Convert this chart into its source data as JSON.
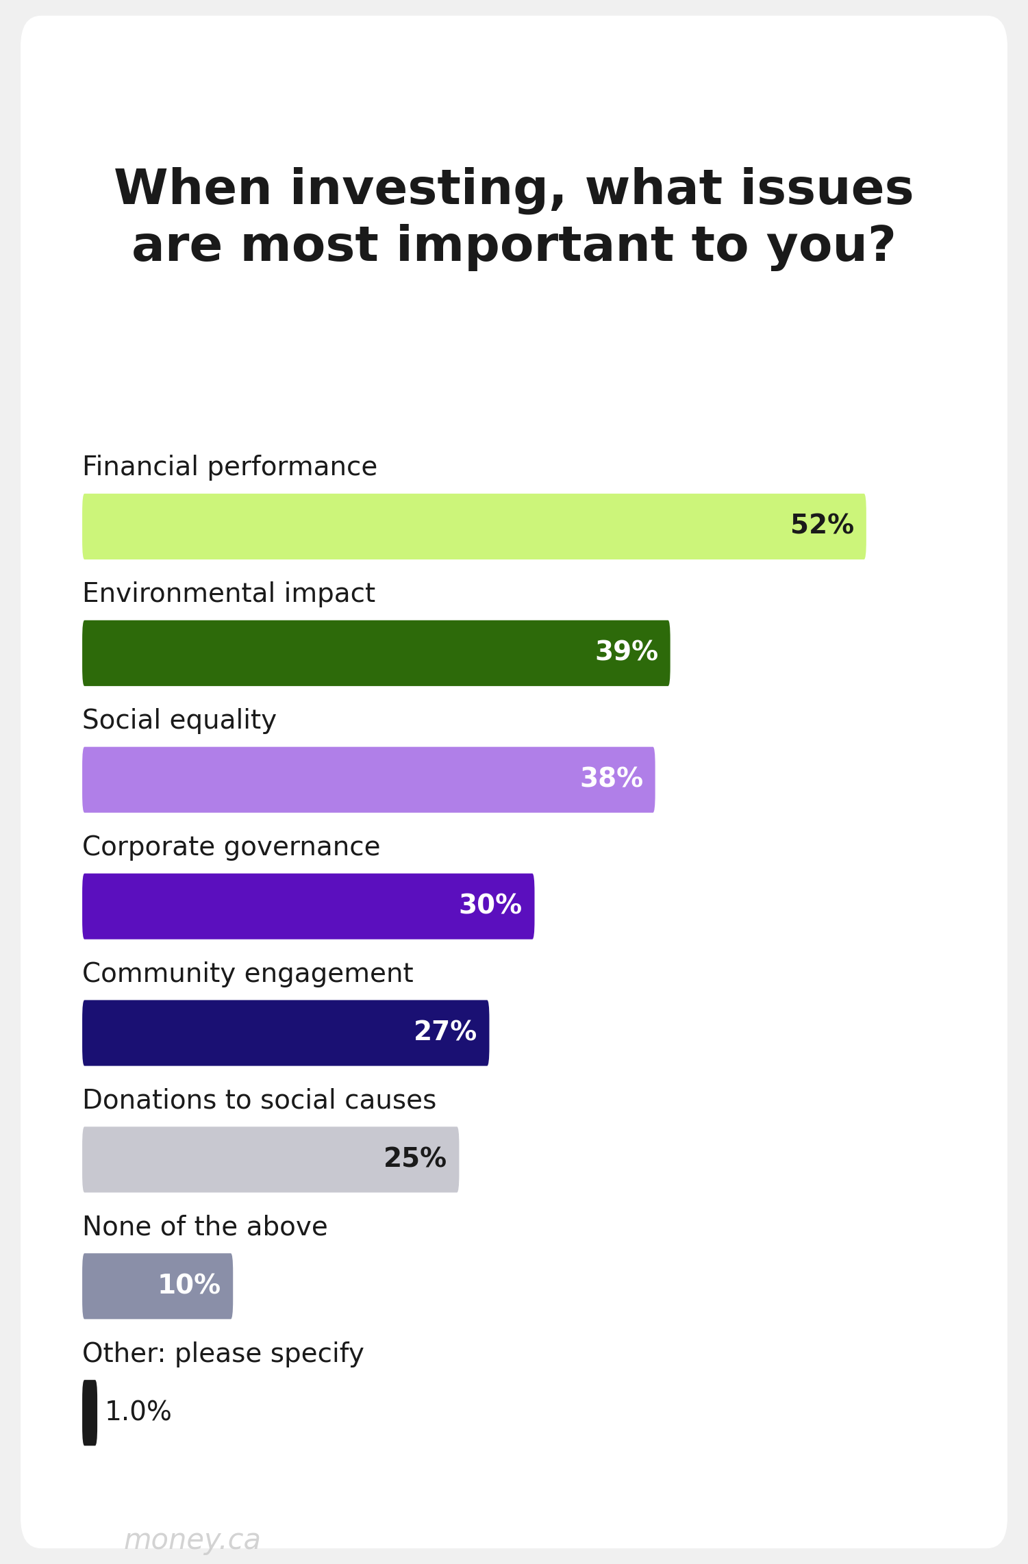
{
  "title": "When investing, what issues\nare most important to you?",
  "categories": [
    "Financial performance",
    "Environmental impact",
    "Social equality",
    "Corporate governance",
    "Community engagement",
    "Donations to social causes",
    "None of the above",
    "Other: please specify"
  ],
  "values": [
    52,
    39,
    38,
    30,
    27,
    25,
    10,
    1.0
  ],
  "labels": [
    "52%",
    "39%",
    "38%",
    "30%",
    "27%",
    "25%",
    "10%",
    "1.0%"
  ],
  "bar_colors": [
    "#ccf57a",
    "#2d6a0a",
    "#b07fe8",
    "#5b0fbe",
    "#1a1073",
    "#c8c8d0",
    "#8a8fa8",
    "#1a1a1a"
  ],
  "label_colors": [
    "#1a1a1a",
    "#ffffff",
    "#ffffff",
    "#ffffff",
    "#ffffff",
    "#1a1a1a",
    "#ffffff",
    "#1a1a1a"
  ],
  "background_color": "#f0f0f0",
  "card_color": "#ffffff",
  "title_fontsize": 52,
  "label_fontsize": 28,
  "category_fontsize": 28,
  "watermark": "money.ca",
  "max_value": 60
}
